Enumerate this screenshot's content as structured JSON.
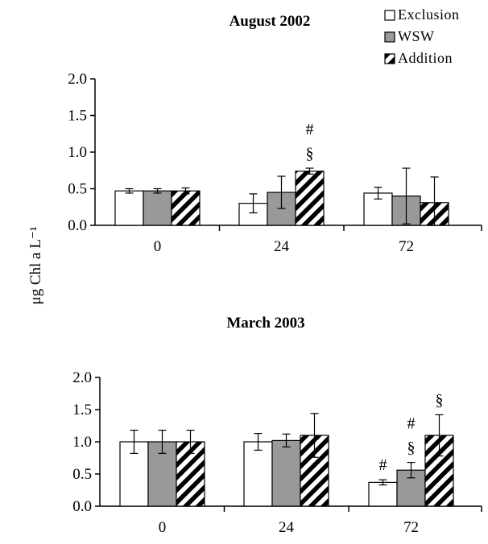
{
  "chart_data": [
    {
      "type": "bar",
      "title": "August 2002",
      "xlabel": "",
      "ylabel": "μg Chl a L⁻¹",
      "ylim": [
        0,
        2.0
      ],
      "yticks": [
        "0.0",
        "0.5",
        "1.0",
        "1.5",
        "2.0"
      ],
      "categories": [
        "0",
        "24",
        "72"
      ],
      "series": [
        {
          "name": "Exclusion",
          "values": [
            0.47,
            0.3,
            0.44
          ],
          "errors": [
            0.03,
            0.13,
            0.08
          ]
        },
        {
          "name": "WSW",
          "values": [
            0.47,
            0.45,
            0.4
          ],
          "errors": [
            0.03,
            0.22,
            0.38
          ]
        },
        {
          "name": "Addition",
          "values": [
            0.47,
            0.74,
            0.31
          ],
          "errors": [
            0.04,
            0.04,
            0.35
          ]
        }
      ],
      "annotations": [
        {
          "category": "24",
          "series": "Addition",
          "labels": [
            "#",
            "§"
          ]
        }
      ],
      "legend": "top-right"
    },
    {
      "type": "bar",
      "title": "March 2003",
      "xlabel": "",
      "ylabel": "μg Chl a L⁻¹",
      "ylim": [
        0,
        2.0
      ],
      "yticks": [
        "0.0",
        "0.5",
        "1.0",
        "1.5",
        "2.0"
      ],
      "categories": [
        "0",
        "24",
        "72"
      ],
      "series": [
        {
          "name": "Exclusion",
          "values": [
            1.0,
            1.0,
            0.37
          ],
          "errors": [
            0.18,
            0.13,
            0.04
          ]
        },
        {
          "name": "WSW",
          "values": [
            1.0,
            1.02,
            0.56
          ],
          "errors": [
            0.18,
            0.1,
            0.12
          ]
        },
        {
          "name": "Addition",
          "values": [
            1.0,
            1.1,
            1.1
          ],
          "errors": [
            0.18,
            0.34,
            0.32
          ]
        }
      ],
      "annotations": [
        {
          "category": "72",
          "series": "Exclusion",
          "labels": [
            "#"
          ]
        },
        {
          "category": "72",
          "series": "WSW",
          "labels": [
            "#",
            "§"
          ]
        },
        {
          "category": "72",
          "series": "Addition",
          "labels": [
            "§"
          ]
        }
      ]
    }
  ],
  "colors": {
    "Exclusion": "#ffffff",
    "WSW": "#999999",
    "Addition": "#000000",
    "axis": "#000000"
  }
}
